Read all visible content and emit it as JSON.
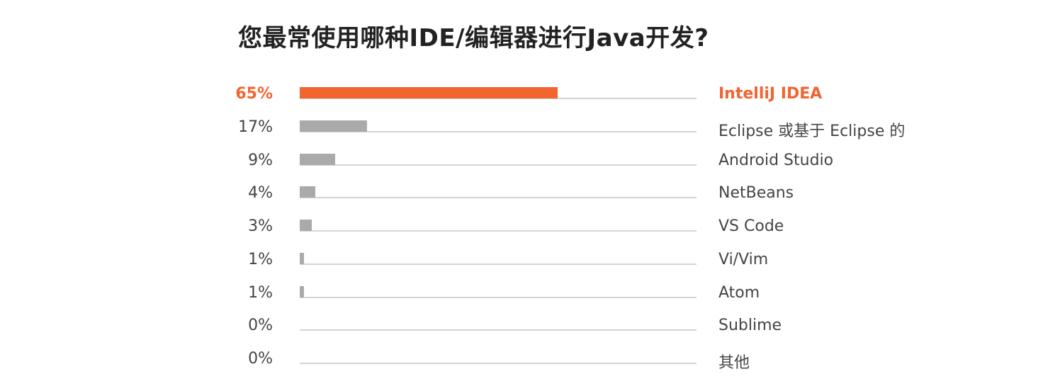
{
  "chart_data": {
    "type": "bar",
    "orientation": "horizontal",
    "title": "您最常使用哪种IDE/编辑器进行Java开发?",
    "categories": [
      "IntelliJ IDEA",
      "Eclipse 或基于 Eclipse 的",
      "Android Studio",
      "NetBeans",
      "VS Code",
      "Vi/Vim",
      "Atom",
      "Sublime",
      "其他"
    ],
    "values": [
      65,
      17,
      9,
      4,
      3,
      1,
      1,
      0,
      0
    ],
    "value_labels": [
      "65%",
      "17%",
      "9%",
      "4%",
      "3%",
      "1%",
      "1%",
      "0%",
      "0%"
    ],
    "xlim": [
      0,
      100
    ],
    "highlight_index": 0,
    "colors": {
      "highlight": "#f26430",
      "default": "#aaaaaa",
      "track": "#d4d4d4",
      "text": "#444444"
    }
  }
}
